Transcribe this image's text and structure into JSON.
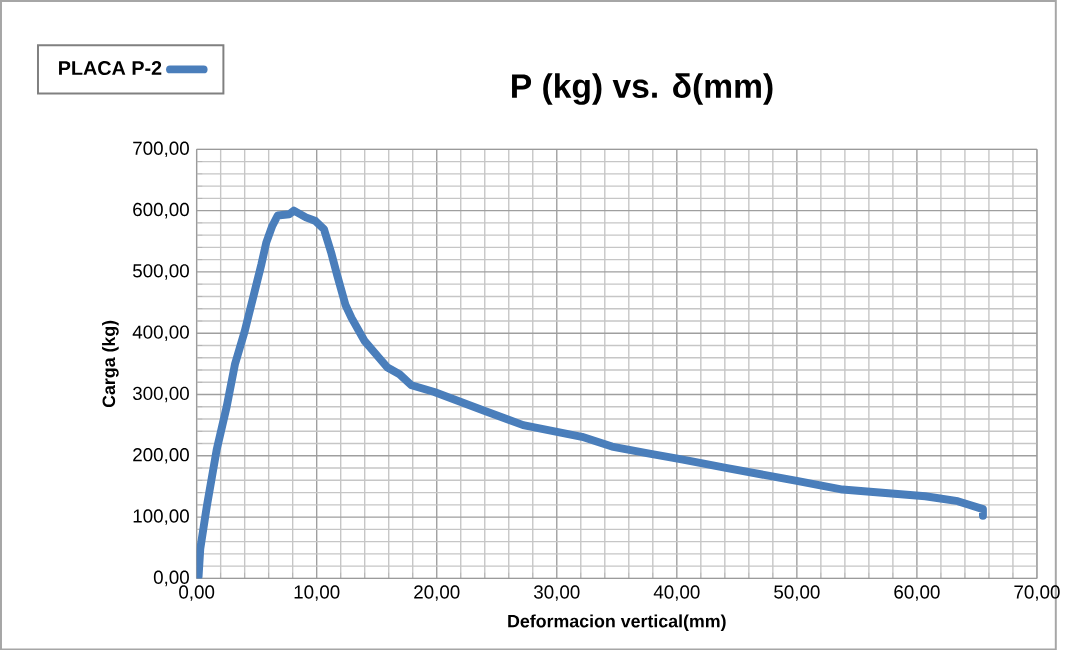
{
  "chart_data": {
    "type": "line",
    "title": "P (kg) vs. δ(mm)",
    "xlabel": "Deformacion vertical(mm)",
    "ylabel": "Carga (kg)",
    "x": [
      0,
      0.16,
      0.3,
      0.85,
      1.67,
      2.5,
      3.2,
      4.0,
      4.83,
      5.4,
      5.8,
      6.3,
      6.75,
      7.7,
      8.1,
      9.1,
      9.9,
      10.6,
      11.2,
      11.7,
      12.4,
      12.9,
      14.0,
      15.1,
      15.9,
      16.9,
      17.9,
      19.8,
      23.9,
      27.2,
      32.1,
      34.6,
      37.6,
      40.4,
      44.2,
      50.0,
      53.8,
      60.7,
      63.4,
      65.5,
      65.5
    ],
    "series": [
      {
        "name": "PLACA P-2",
        "color": "#4a7ebb",
        "values": [
          0,
          3,
          48,
          118,
          210,
          280,
          350,
          403,
          468,
          513,
          548,
          575,
          592,
          594,
          600,
          589,
          583,
          570,
          532,
          495,
          446,
          425,
          387,
          362,
          344,
          333,
          315,
          304,
          274,
          250,
          231,
          215,
          204,
          194,
          180,
          159,
          145,
          134,
          126,
          113,
          102
        ]
      }
    ],
    "xlim": [
      0,
      70
    ],
    "ylim": [
      0,
      700
    ],
    "xticks": [
      {
        "value": 0,
        "label": "0,00"
      },
      {
        "value": 10,
        "label": "10,00"
      },
      {
        "value": 20,
        "label": "20,00"
      },
      {
        "value": 30,
        "label": "30,00"
      },
      {
        "value": 40,
        "label": "40,00"
      },
      {
        "value": 50,
        "label": "50,00"
      },
      {
        "value": 60,
        "label": "60,00"
      },
      {
        "value": 70,
        "label": "70,00"
      }
    ],
    "yticks": [
      {
        "value": 0,
        "label": "0,00"
      },
      {
        "value": 100,
        "label": "100,00"
      },
      {
        "value": 200,
        "label": "200,00"
      },
      {
        "value": 300,
        "label": "300,00"
      },
      {
        "value": 400,
        "label": "400,00"
      },
      {
        "value": 500,
        "label": "500,00"
      },
      {
        "value": 600,
        "label": "600,00"
      },
      {
        "value": 700,
        "label": "700,00"
      }
    ],
    "grid": true,
    "legend": "top left",
    "marker": "none",
    "line_style": "solid"
  }
}
